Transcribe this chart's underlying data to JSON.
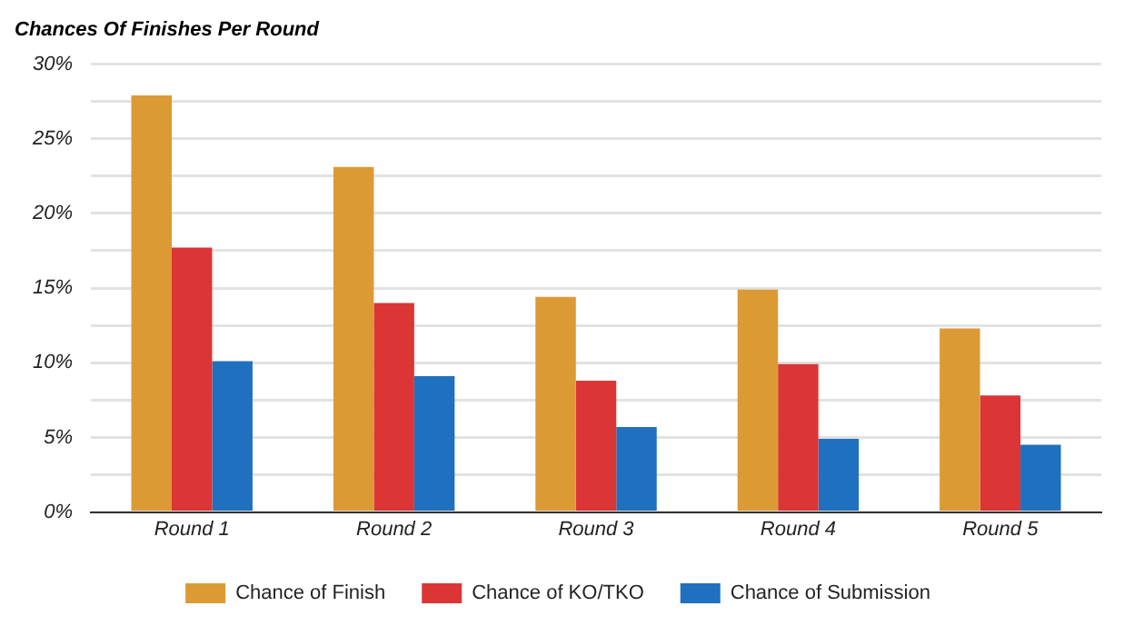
{
  "chart_data": {
    "type": "bar",
    "title": "Chances Of Finishes Per Round",
    "categories": [
      "Round 1",
      "Round 2",
      "Round 3",
      "Round 4",
      "Round 5"
    ],
    "series": [
      {
        "name": "Chance of Finish",
        "color": "#dc9a35",
        "values": [
          27.9,
          23.1,
          14.4,
          14.9,
          12.3
        ]
      },
      {
        "name": "Chance of KO/TKO",
        "color": "#dc3535",
        "values": [
          17.7,
          14.0,
          8.8,
          9.9,
          7.8
        ]
      },
      {
        "name": "Chance of Submission",
        "color": "#2070c0",
        "values": [
          10.1,
          9.1,
          5.7,
          4.9,
          4.5
        ]
      }
    ],
    "ylim": [
      0,
      30
    ],
    "yticks": [
      {
        "value": 0,
        "label": "0%"
      },
      {
        "value": 2.5,
        "label": null
      },
      {
        "value": 5,
        "label": "5%"
      },
      {
        "value": 7.5,
        "label": null
      },
      {
        "value": 10,
        "label": "10%"
      },
      {
        "value": 12.5,
        "label": null
      },
      {
        "value": 15,
        "label": "15%"
      },
      {
        "value": 17.5,
        "label": null
      },
      {
        "value": 20,
        "label": "20%"
      },
      {
        "value": 22.5,
        "label": null
      },
      {
        "value": 25,
        "label": "25%"
      },
      {
        "value": 27.5,
        "label": null
      },
      {
        "value": 30,
        "label": "30%"
      }
    ],
    "grid": "y",
    "legend": "bottom"
  }
}
